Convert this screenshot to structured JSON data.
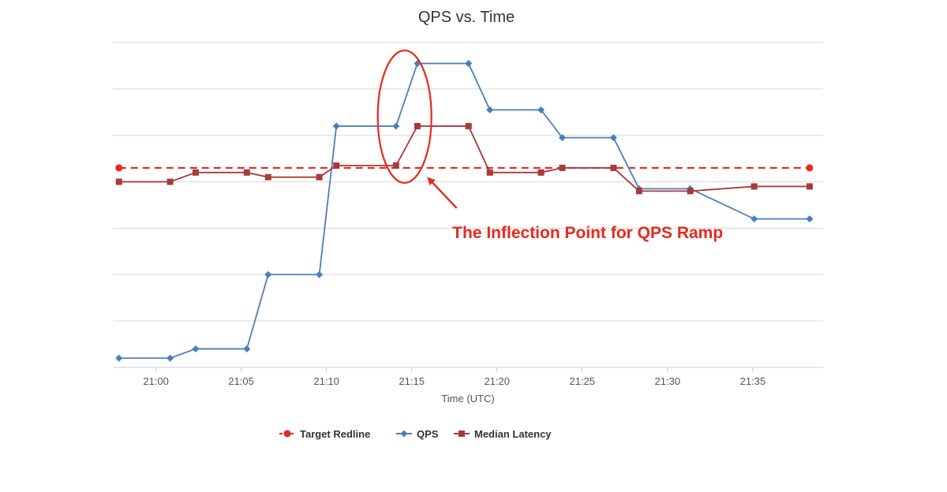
{
  "chart_data": {
    "type": "line",
    "title": "QPS vs. Time",
    "xlabel": "Time (UTC)",
    "ylabel": "",
    "x_ticks": [
      "21:00",
      "21:05",
      "21:10",
      "21:15",
      "21:20",
      "21:25",
      "21:30",
      "21:35"
    ],
    "xlim_minutes": [
      -2.2,
      38.8
    ],
    "ylim": [
      0,
      7
    ],
    "grid": true,
    "legend_position": "bottom-center",
    "series": [
      {
        "name": "Target Redline",
        "color": "#e8281e",
        "style": "dashed",
        "marker": "circle",
        "x": [
          "20:57:50",
          "21:38:20"
        ],
        "y": [
          4.3,
          4.3
        ]
      },
      {
        "name": "QPS",
        "color": "#4a7fb9",
        "style": "solid",
        "marker": "diamond",
        "x": [
          "20:57:50",
          "21:00:50",
          "21:02:20",
          "21:05:20",
          "21:06:35",
          "21:09:35",
          "21:10:35",
          "21:14:05",
          "21:15:20",
          "21:18:20",
          "21:19:35",
          "21:22:35",
          "21:23:50",
          "21:26:50",
          "21:28:20",
          "21:31:20",
          "21:35:05",
          "21:38:20"
        ],
        "y": [
          0.2,
          0.2,
          0.4,
          0.4,
          2.0,
          2.0,
          5.2,
          5.2,
          6.55,
          6.55,
          5.55,
          5.55,
          4.95,
          4.95,
          3.85,
          3.85,
          3.2,
          3.2
        ]
      },
      {
        "name": "Median Latency",
        "color": "#a83a3a",
        "style": "solid",
        "marker": "square",
        "x": [
          "20:57:50",
          "21:00:50",
          "21:02:20",
          "21:05:20",
          "21:06:35",
          "21:09:35",
          "21:10:35",
          "21:14:05",
          "21:15:20",
          "21:18:20",
          "21:19:35",
          "21:22:35",
          "21:23:50",
          "21:26:50",
          "21:28:20",
          "21:31:20",
          "21:35:05",
          "21:38:20"
        ],
        "y": [
          4.0,
          4.0,
          4.2,
          4.2,
          4.1,
          4.1,
          4.35,
          4.35,
          5.2,
          5.2,
          4.2,
          4.2,
          4.3,
          4.3,
          3.8,
          3.8,
          3.9,
          3.9
        ]
      }
    ],
    "annotations": [
      {
        "text": "The Inflection Point for QPS Ramp",
        "target_x": "21:14:35",
        "target_y": 5.2
      }
    ]
  }
}
